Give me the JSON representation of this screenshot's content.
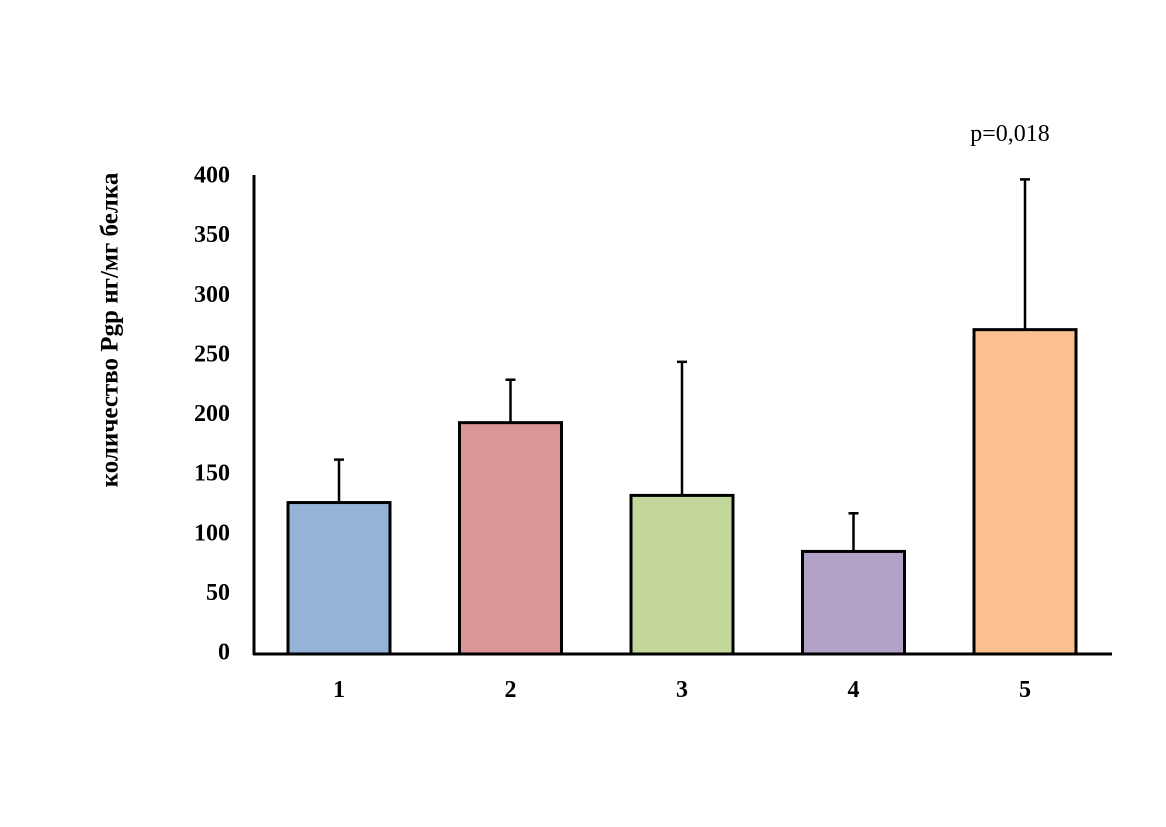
{
  "chart_data": {
    "type": "bar",
    "title": "",
    "xlabel": "",
    "ylabel": "количество Pgp нг/мг белка",
    "ylim": [
      0,
      400
    ],
    "yticks": [
      0,
      50,
      100,
      150,
      200,
      250,
      300,
      350,
      400
    ],
    "grid": false,
    "categories": [
      "1",
      "2",
      "3",
      "4",
      "5"
    ],
    "values": [
      127,
      194,
      133,
      86,
      272
    ],
    "error_upper": [
      163,
      230,
      245,
      118,
      398
    ],
    "colors": [
      "#95B3D7",
      "#D99694",
      "#C3D69B",
      "#B3A2C7",
      "#FAC090"
    ],
    "annotations": [
      {
        "text": "p=0,018",
        "category": "5"
      }
    ]
  }
}
